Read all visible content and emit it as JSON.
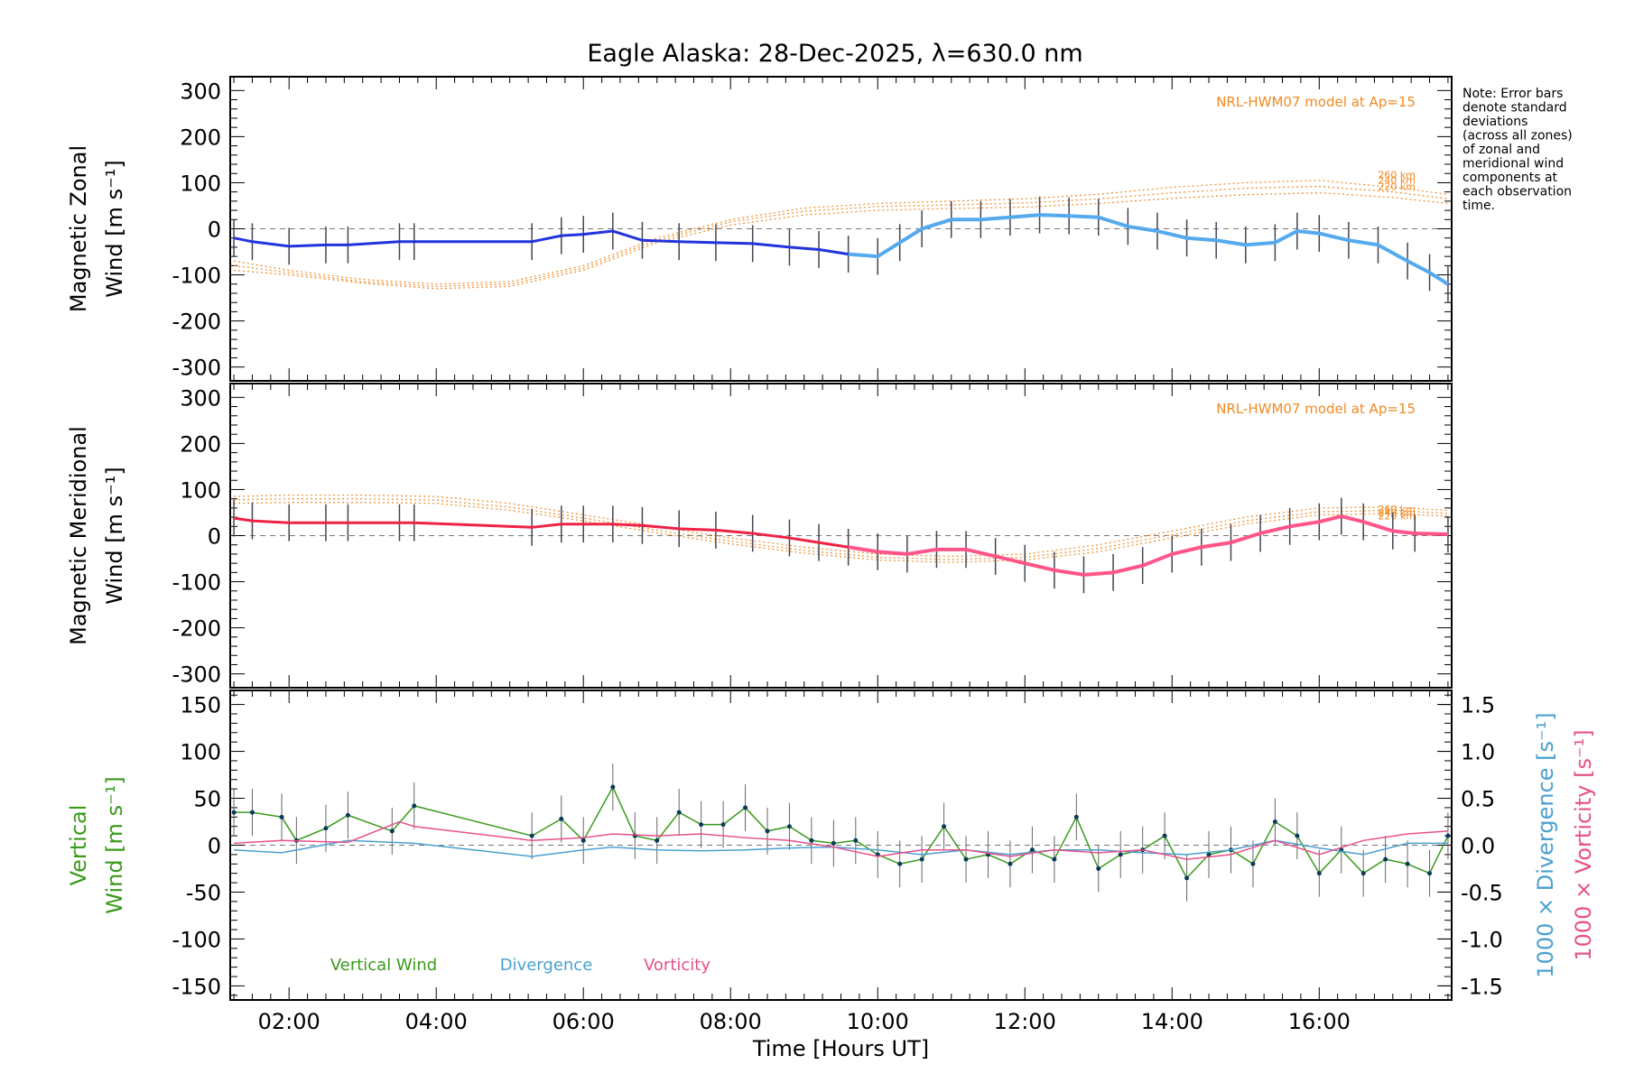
{
  "chart_data": [
    {
      "type": "line",
      "title": "Eagle Alaska: 28-Dec-2025, λ=630.0 nm",
      "ylabel_line1": "Magnetic Zonal",
      "ylabel_line2": "Wind [m s⁻¹]",
      "ylim": [
        -330,
        330
      ],
      "yticks": [
        300,
        200,
        100,
        0,
        -100,
        -200,
        -300
      ],
      "model_label": "NRL-HWM07 model at Ap=15",
      "model_series": [
        {
          "name": "260 km",
          "x": [
            1.25,
            2,
            3,
            4,
            5,
            6,
            7,
            8,
            9,
            10,
            11,
            12,
            13,
            14,
            15,
            16,
            17,
            17.75
          ],
          "y": [
            -70,
            -90,
            -110,
            -120,
            -115,
            -80,
            -20,
            20,
            45,
            55,
            60,
            65,
            75,
            90,
            100,
            105,
            90,
            75
          ]
        },
        {
          "name": "240 km",
          "x": [
            1.25,
            2,
            3,
            4,
            5,
            6,
            7,
            8,
            9,
            10,
            11,
            12,
            13,
            14,
            15,
            16,
            17,
            17.75
          ],
          "y": [
            -80,
            -95,
            -115,
            -125,
            -120,
            -85,
            -25,
            15,
            38,
            48,
            52,
            56,
            65,
            78,
            88,
            92,
            80,
            65
          ]
        },
        {
          "name": "220 km",
          "x": [
            1.25,
            2,
            3,
            4,
            5,
            6,
            7,
            8,
            9,
            10,
            11,
            12,
            13,
            14,
            15,
            16,
            17,
            17.75
          ],
          "y": [
            -90,
            -100,
            -118,
            -130,
            -125,
            -90,
            -30,
            8,
            30,
            40,
            44,
            47,
            55,
            66,
            74,
            78,
            68,
            55
          ]
        }
      ],
      "series": [
        {
          "name": "Zonal wind",
          "x": [
            1.25,
            1.5,
            2.0,
            2.5,
            2.8,
            3.5,
            3.7,
            5.3,
            5.7,
            6.0,
            6.4,
            6.8,
            7.3,
            7.8,
            8.3,
            8.8,
            9.2,
            9.6,
            10.0,
            10.3,
            10.6,
            11.0,
            11.4,
            11.8,
            12.2,
            12.6,
            13.0,
            13.4,
            13.8,
            14.2,
            14.6,
            15.0,
            15.4,
            15.7,
            16.0,
            16.4,
            16.8,
            17.2,
            17.5,
            17.75
          ],
          "y": [
            -20,
            -28,
            -38,
            -35,
            -35,
            -28,
            -28,
            -28,
            -15,
            -12,
            -5,
            -25,
            -28,
            -30,
            -32,
            -40,
            -45,
            -55,
            -60,
            -30,
            0,
            20,
            20,
            25,
            30,
            28,
            25,
            5,
            -5,
            -20,
            -25,
            -35,
            -30,
            -5,
            -10,
            -25,
            -35,
            -70,
            -95,
            -120
          ]
        }
      ],
      "xlim": [
        1.2,
        17.8
      ]
    },
    {
      "type": "line",
      "ylabel_line1": "Magnetic Meridional",
      "ylabel_line2": "Wind [m s⁻¹]",
      "ylim": [
        -330,
        330
      ],
      "yticks": [
        300,
        200,
        100,
        0,
        -100,
        -200,
        -300
      ],
      "model_label": "NRL-HWM07 model at Ap=15",
      "model_series": [
        {
          "name": "260 km",
          "x": [
            1.25,
            2,
            3,
            4,
            5,
            6,
            7,
            8,
            9,
            10,
            11,
            12,
            13,
            14,
            15,
            16,
            17,
            17.75
          ],
          "y": [
            85,
            88,
            88,
            85,
            70,
            45,
            20,
            -5,
            -25,
            -40,
            -45,
            -40,
            -20,
            10,
            40,
            60,
            62,
            55
          ]
        },
        {
          "name": "240 km",
          "x": [
            1.25,
            2,
            3,
            4,
            5,
            6,
            7,
            8,
            9,
            10,
            11,
            12,
            13,
            14,
            15,
            16,
            17,
            17.75
          ],
          "y": [
            78,
            80,
            80,
            77,
            62,
            38,
            12,
            -12,
            -32,
            -47,
            -52,
            -47,
            -28,
            2,
            32,
            52,
            55,
            48
          ]
        },
        {
          "name": "220 km",
          "x": [
            1.25,
            2,
            3,
            4,
            5,
            6,
            7,
            8,
            9,
            10,
            11,
            12,
            13,
            14,
            15,
            16,
            17,
            17.75
          ],
          "y": [
            70,
            72,
            72,
            70,
            55,
            32,
            6,
            -18,
            -38,
            -53,
            -58,
            -53,
            -35,
            -5,
            25,
            45,
            48,
            42
          ]
        }
      ],
      "series": [
        {
          "name": "Meridional wind",
          "x": [
            1.25,
            1.5,
            2.0,
            2.5,
            2.8,
            3.5,
            3.7,
            5.3,
            5.7,
            6.0,
            6.4,
            6.8,
            7.3,
            7.8,
            8.3,
            8.8,
            9.2,
            9.6,
            10.0,
            10.4,
            10.8,
            11.2,
            11.6,
            12.0,
            12.4,
            12.8,
            13.2,
            13.6,
            14.0,
            14.4,
            14.8,
            15.2,
            15.6,
            16.0,
            16.3,
            16.6,
            17.0,
            17.3,
            17.75
          ],
          "y": [
            38,
            32,
            28,
            28,
            28,
            28,
            28,
            18,
            25,
            25,
            25,
            22,
            15,
            12,
            5,
            -5,
            -15,
            -25,
            -35,
            -40,
            -30,
            -30,
            -45,
            -60,
            -75,
            -85,
            -80,
            -65,
            -40,
            -25,
            -15,
            5,
            20,
            30,
            42,
            30,
            10,
            5,
            3
          ]
        }
      ],
      "xlim": [
        1.2,
        17.8
      ]
    },
    {
      "type": "line",
      "ylabel_line1": "Vertical",
      "ylabel_line2": "Wind [m s⁻¹]",
      "ylim": [
        -165,
        165
      ],
      "yticks": [
        150,
        100,
        50,
        0,
        -50,
        -100,
        -150
      ],
      "y2lim": [
        -1.65,
        1.65
      ],
      "y2ticks": [
        "1.5",
        "1.0",
        "0.5",
        "0.0",
        "-0.5",
        "-1.0",
        "-1.5"
      ],
      "y2label_div": "1000 × Divergence [s⁻¹]",
      "y2label_vort": "1000 × Vorticity [s⁻¹]",
      "xlabel": "Time [Hours UT]",
      "xticks": [
        "02:00",
        "04:00",
        "06:00",
        "08:00",
        "10:00",
        "12:00",
        "14:00",
        "16:00"
      ],
      "xtick_values": [
        2,
        4,
        6,
        8,
        10,
        12,
        14,
        16
      ],
      "xlim": [
        1.2,
        17.8
      ],
      "legend": [
        "Vertical Wind",
        "Divergence",
        "Vorticity"
      ],
      "series": [
        {
          "name": "Vertical Wind",
          "color": "#3a9a1a",
          "x": [
            1.25,
            1.5,
            1.9,
            2.1,
            2.5,
            2.8,
            3.4,
            3.7,
            5.3,
            5.7,
            6.0,
            6.4,
            6.7,
            7.0,
            7.3,
            7.6,
            7.9,
            8.2,
            8.5,
            8.8,
            9.1,
            9.4,
            9.7,
            10.0,
            10.3,
            10.6,
            10.9,
            11.2,
            11.5,
            11.8,
            12.1,
            12.4,
            12.7,
            13.0,
            13.3,
            13.6,
            13.9,
            14.2,
            14.5,
            14.8,
            15.1,
            15.4,
            15.7,
            16.0,
            16.3,
            16.6,
            16.9,
            17.2,
            17.5,
            17.75
          ],
          "y": [
            35,
            35,
            30,
            5,
            18,
            32,
            15,
            42,
            10,
            28,
            5,
            62,
            10,
            5,
            35,
            22,
            22,
            40,
            15,
            20,
            5,
            2,
            5,
            -10,
            -20,
            -15,
            20,
            -15,
            -10,
            -20,
            -5,
            -15,
            30,
            -25,
            -10,
            -5,
            10,
            -35,
            -10,
            -5,
            -20,
            25,
            10,
            -30,
            -5,
            -30,
            -15,
            -20,
            -30,
            10
          ]
        },
        {
          "name": "Divergence",
          "color": "#4aa0d0",
          "x": [
            1.25,
            1.9,
            2.8,
            3.7,
            5.3,
            6.0,
            6.4,
            7.0,
            7.6,
            8.2,
            8.8,
            9.4,
            10.0,
            10.6,
            11.2,
            11.8,
            12.4,
            13.0,
            13.6,
            14.2,
            14.8,
            15.4,
            16.0,
            16.6,
            17.2,
            17.75
          ],
          "y": [
            -0.05,
            -0.08,
            0.05,
            0.02,
            -0.12,
            -0.05,
            -0.02,
            -0.05,
            -0.06,
            -0.05,
            -0.03,
            -0.02,
            -0.05,
            -0.1,
            -0.05,
            -0.1,
            -0.05,
            -0.05,
            -0.08,
            -0.1,
            -0.05,
            0.05,
            -0.03,
            -0.1,
            0.02,
            0.02
          ]
        },
        {
          "name": "Vorticity",
          "color": "#e8508a",
          "x": [
            1.25,
            1.9,
            2.8,
            3.5,
            3.7,
            5.3,
            6.0,
            6.4,
            7.0,
            7.6,
            8.2,
            8.8,
            9.4,
            10.0,
            10.6,
            11.2,
            11.8,
            12.4,
            13.0,
            13.6,
            14.2,
            14.8,
            15.4,
            16.0,
            16.6,
            17.2,
            17.75
          ],
          "y": [
            0.02,
            0.05,
            0.03,
            0.25,
            0.2,
            0.05,
            0.08,
            0.12,
            0.1,
            0.12,
            0.08,
            0.05,
            -0.02,
            -0.12,
            -0.05,
            -0.05,
            -0.12,
            -0.05,
            -0.08,
            -0.05,
            -0.15,
            -0.1,
            0.05,
            -0.1,
            0.05,
            0.12,
            0.15
          ]
        }
      ]
    }
  ],
  "note": [
    "Note: Error bars",
    "denote standard",
    "deviations",
    "(across all zones)",
    "of zonal and",
    "meridional wind",
    "components at",
    "each observation",
    "time."
  ]
}
